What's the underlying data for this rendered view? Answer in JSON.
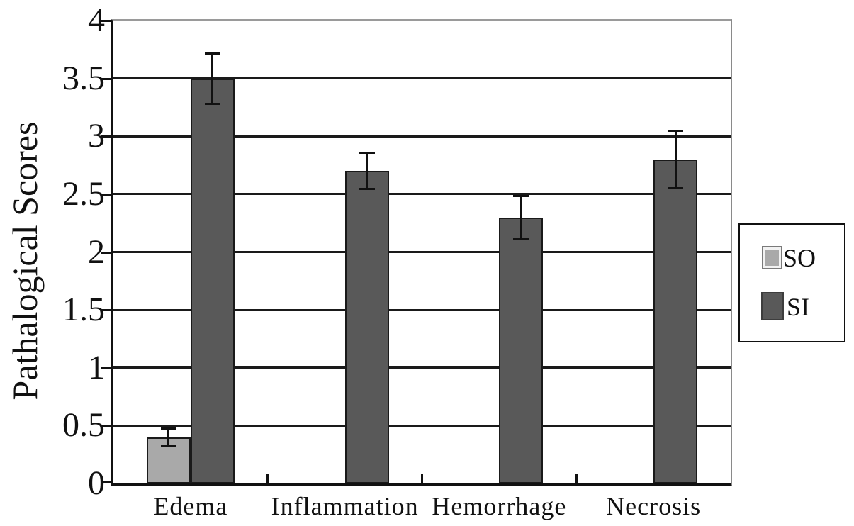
{
  "chart_data": {
    "type": "bar",
    "title": "",
    "ylabel": "Pathalogical Scores",
    "xlabel": "",
    "categories": [
      "Edema",
      "Inflammation",
      "Hemorrhage",
      "Necrosis"
    ],
    "series": [
      {
        "name": "SO",
        "color": "#a9a9a9",
        "border_color": "#1a1a1a",
        "values": [
          0.4,
          0,
          0,
          0
        ],
        "errors": [
          0.08,
          0,
          0,
          0
        ]
      },
      {
        "name": "SI",
        "color": "#595959",
        "border_color": "#1a1a1a",
        "values": [
          3.5,
          2.7,
          2.3,
          2.8
        ],
        "errors": [
          0.22,
          0.16,
          0.19,
          0.25
        ]
      }
    ],
    "ylim": [
      0,
      4
    ],
    "yticks": [
      0,
      0.5,
      1,
      1.5,
      2,
      2.5,
      3,
      3.5,
      4
    ],
    "grid": true,
    "error_bars": true,
    "legend_position": "right-outside",
    "legend_labels": [
      "SO",
      "SI"
    ]
  },
  "styles": {
    "background": "#ffffff",
    "axis_color": "#111111",
    "gridline_color": "#1a1a1a",
    "frame_top_color": "#9a9a9a",
    "frame_right_color": "#8a8a8a",
    "so_fill": "#a9a9a9",
    "si_fill": "#595959",
    "error_bar_color": "#111111"
  }
}
